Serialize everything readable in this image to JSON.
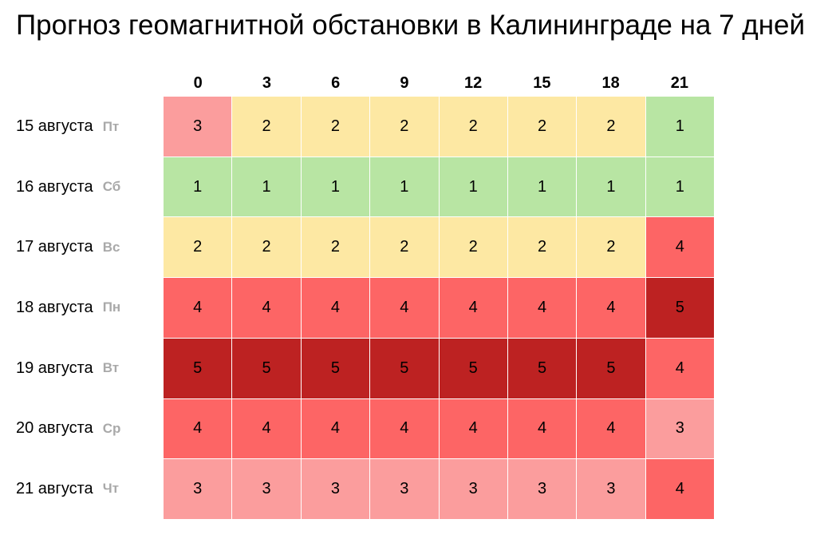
{
  "title": "Прогноз геомагнитной обстановки в Калининграде на 7 дней",
  "hours": [
    "0",
    "3",
    "6",
    "9",
    "12",
    "15",
    "18",
    "21"
  ],
  "rows": [
    {
      "date": "15 августа",
      "dow": "Пт"
    },
    {
      "date": "16 августа",
      "dow": "Сб"
    },
    {
      "date": "17 августа",
      "dow": "Вс"
    },
    {
      "date": "18 августа",
      "dow": "Пн"
    },
    {
      "date": "19 августа",
      "dow": "Вт"
    },
    {
      "date": "20 августа",
      "dow": "Ср"
    },
    {
      "date": "21 августа",
      "dow": "Чт"
    }
  ],
  "level_colors": {
    "1": "#b8e5a3",
    "2": "#fde8a3",
    "3": "#fb9d9d",
    "4": "#fd6565",
    "5": "#bd2222"
  },
  "chart_data": {
    "type": "heatmap",
    "title": "Прогноз геомагнитной обстановки в Калининграде на 7 дней",
    "x": [
      "0",
      "3",
      "6",
      "9",
      "12",
      "15",
      "18",
      "21"
    ],
    "y": [
      "15 августа",
      "16 августа",
      "17 августа",
      "18 августа",
      "19 августа",
      "20 августа",
      "21 августа"
    ],
    "values": [
      [
        3,
        2,
        2,
        2,
        2,
        2,
        2,
        1
      ],
      [
        1,
        1,
        1,
        1,
        1,
        1,
        1,
        1
      ],
      [
        2,
        2,
        2,
        2,
        2,
        2,
        2,
        4
      ],
      [
        4,
        4,
        4,
        4,
        4,
        4,
        4,
        5
      ],
      [
        5,
        5,
        5,
        5,
        5,
        5,
        5,
        4
      ],
      [
        4,
        4,
        4,
        4,
        4,
        4,
        4,
        3
      ],
      [
        3,
        3,
        3,
        3,
        3,
        3,
        3,
        4
      ]
    ]
  }
}
